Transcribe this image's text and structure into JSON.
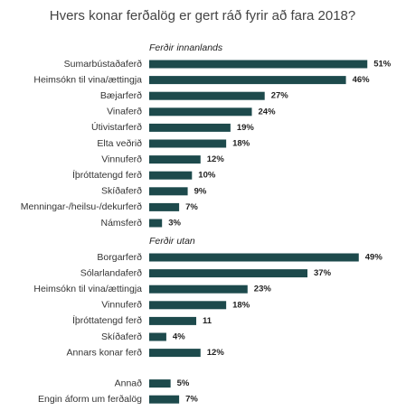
{
  "chart_data": {
    "type": "bar",
    "orientation": "horizontal",
    "title": "Hvers konar ferðalög er gert ráð fyrir að fara 2018?",
    "color": "#1d4a4c",
    "groups": [
      {
        "name": "Ferðir innanlands",
        "categories": [
          "Sumarbústaðaferð",
          "Heimsókn til vina/ættingja",
          "Bæjarferð",
          "Vinaferð",
          "Útivistarferð",
          "Elta veðrið",
          "Vinnuferð",
          "Íþróttatengd ferð",
          "Skíðaferð",
          "Menningar-/heilsu-/dekurferð",
          "Námsferð"
        ],
        "values": [
          51,
          46,
          27,
          24,
          19,
          18,
          12,
          10,
          9,
          7,
          3
        ],
        "value_labels": [
          "51%",
          "46%",
          "27%",
          "24%",
          "19%",
          "18%",
          "12%",
          "10%",
          "9%",
          "7%",
          "3%"
        ]
      },
      {
        "name": "Ferðir utan",
        "categories": [
          "Borgarferð",
          "Sólarlandaferð",
          "Heimsókn til vina/ættingja",
          "Vinnuferð",
          "Íþróttatengd ferð",
          "Skíðaferð",
          "Annars konar ferð"
        ],
        "values": [
          49,
          37,
          23,
          18,
          11,
          4,
          12
        ],
        "value_labels": [
          "49%",
          "37%",
          "23%",
          "18%",
          "11",
          "4%",
          "12%"
        ]
      },
      {
        "categories": [
          "Annað",
          "Engin áform um ferðalög"
        ],
        "values": [
          5,
          7
        ],
        "value_labels": [
          "5%",
          "7%"
        ]
      }
    ]
  }
}
